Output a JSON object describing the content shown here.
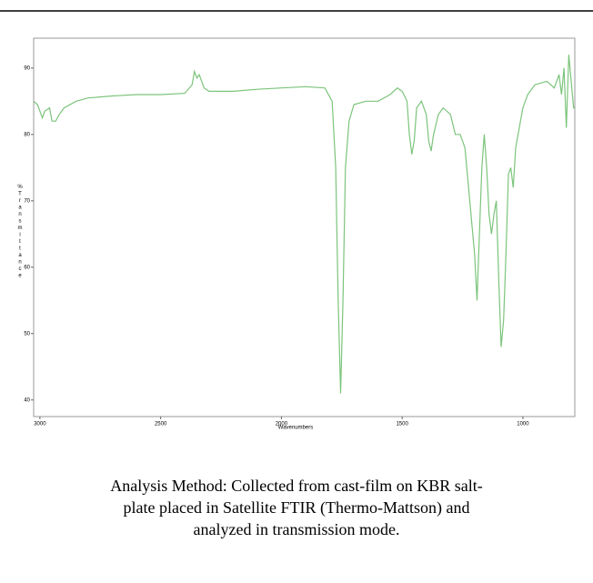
{
  "chart_data": {
    "type": "line",
    "xlabel": "Wavenumbers",
    "ylabel": "% Transmittance",
    "color": "#7cc47c",
    "x": [
      3026,
      3010,
      2990,
      2980,
      2960,
      2950,
      2935,
      2920,
      2900,
      2850,
      2800,
      2700,
      2600,
      2500,
      2400,
      2370,
      2360,
      2350,
      2340,
      2320,
      2300,
      2200,
      2100,
      2000,
      1900,
      1820,
      1790,
      1775,
      1765,
      1755,
      1745,
      1735,
      1720,
      1700,
      1650,
      1600,
      1550,
      1520,
      1500,
      1480,
      1470,
      1460,
      1450,
      1440,
      1420,
      1400,
      1390,
      1380,
      1370,
      1350,
      1330,
      1300,
      1280,
      1260,
      1240,
      1220,
      1200,
      1190,
      1180,
      1170,
      1160,
      1150,
      1140,
      1130,
      1120,
      1110,
      1100,
      1090,
      1080,
      1070,
      1060,
      1050,
      1040,
      1030,
      1000,
      980,
      950,
      900,
      870,
      850,
      840,
      830,
      820,
      810,
      800,
      790,
      785
    ],
    "values": [
      85,
      84.5,
      82.5,
      83.5,
      84,
      82,
      82,
      83,
      84,
      85,
      85.5,
      85.8,
      86,
      86,
      86.2,
      87.5,
      89.5,
      88.5,
      89,
      87,
      86.5,
      86.5,
      86.8,
      87,
      87.2,
      87,
      85,
      75,
      55,
      41,
      55,
      75,
      82,
      84.5,
      85,
      85,
      86,
      87,
      86.5,
      85,
      80,
      77,
      79,
      84,
      85,
      83,
      79,
      77.5,
      80,
      83,
      84,
      83,
      80,
      80,
      78,
      70,
      62,
      55,
      65,
      75,
      80,
      75,
      68,
      65,
      68,
      70,
      58,
      48,
      52,
      62,
      74,
      75,
      72,
      78,
      84,
      86,
      87.5,
      88,
      87,
      89,
      86,
      90,
      81,
      92,
      88,
      84,
      84
    ],
    "xlim": [
      3026,
      785
    ],
    "ylim": [
      37.5,
      94.5
    ],
    "xticks": [
      3000,
      2500,
      2000,
      1500,
      1000
    ],
    "yticks": [
      40,
      50,
      60,
      70,
      80,
      90
    ]
  },
  "caption": [
    "Analysis Method: Collected from cast-film on KBR salt-",
    "plate placed in Satellite FTIR (Thermo-Mattson) and",
    "analyzed in transmission mode."
  ]
}
